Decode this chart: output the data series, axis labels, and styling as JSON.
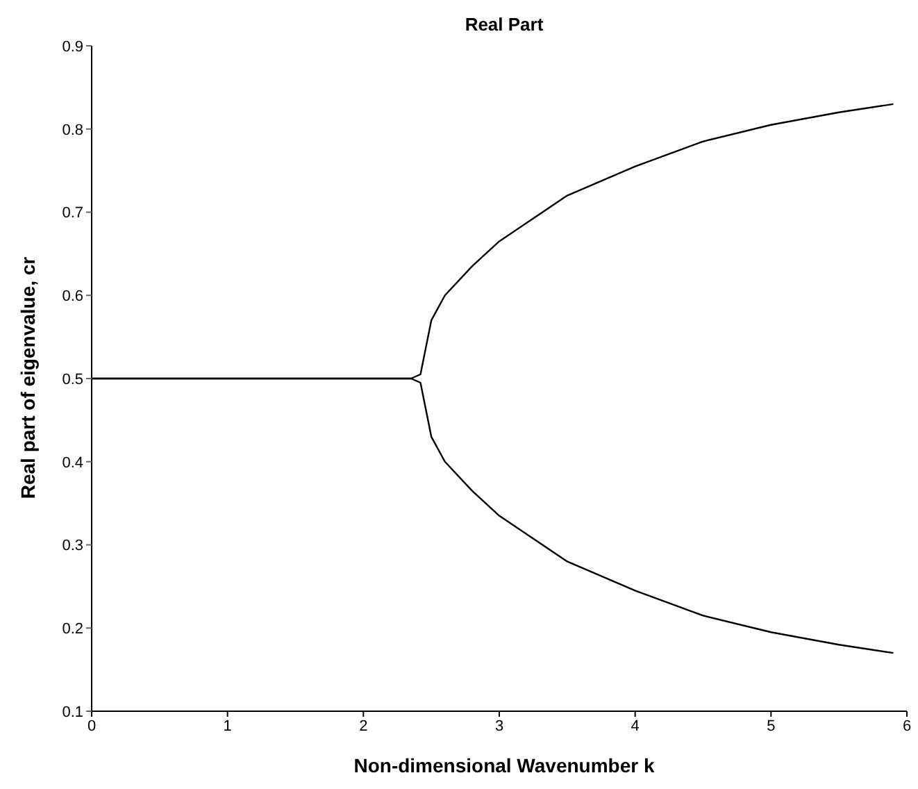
{
  "chart_data": {
    "type": "line",
    "title": "Real Part",
    "xlabel": "Non-dimensional Wavenumber k",
    "ylabel": "Real part of eigenvalue, cr",
    "xlim": [
      0,
      6
    ],
    "xticks": [
      0,
      1,
      2,
      3,
      4,
      5,
      6
    ],
    "ylim": [
      0.1,
      0.9
    ],
    "yticks": [
      0.1,
      0.2,
      0.3,
      0.4,
      0.5,
      0.6,
      0.7,
      0.8,
      0.9
    ],
    "marker": "none",
    "line_style": "solid",
    "series": [
      {
        "color": "#000000",
        "x": [
          0,
          1,
          2,
          2.35,
          2.42,
          2.5,
          2.6,
          2.8,
          3,
          3.5,
          4,
          4.5,
          5,
          5.5,
          5.9
        ],
        "values": [
          0.5,
          0.5,
          0.5,
          0.5,
          0.505,
          0.57,
          0.6,
          0.635,
          0.665,
          0.72,
          0.755,
          0.785,
          0.805,
          0.82,
          0.83
        ]
      },
      {
        "color": "#000000",
        "x": [
          0,
          1,
          2,
          2.35,
          2.42,
          2.5,
          2.6,
          2.8,
          3,
          3.5,
          4,
          4.5,
          5,
          5.5,
          5.9
        ],
        "values": [
          0.5,
          0.5,
          0.5,
          0.5,
          0.495,
          0.43,
          0.4,
          0.365,
          0.335,
          0.28,
          0.245,
          0.215,
          0.195,
          0.18,
          0.17
        ]
      }
    ]
  }
}
